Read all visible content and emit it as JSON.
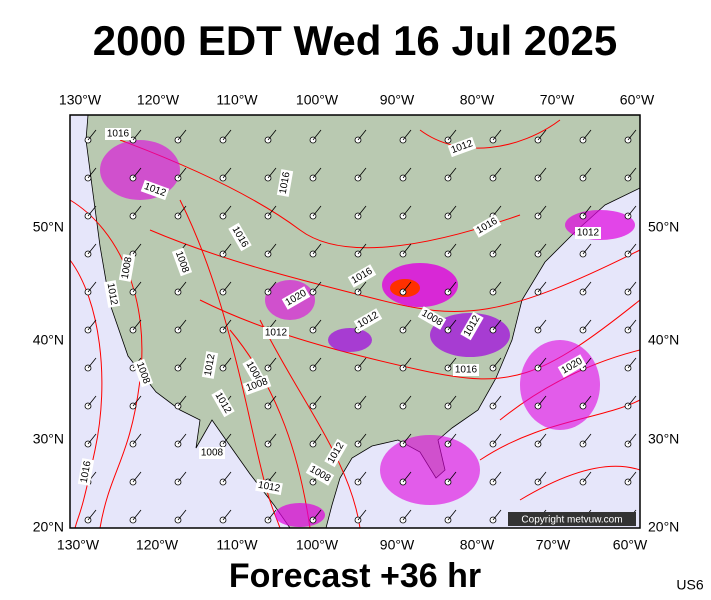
{
  "header": {
    "title": "2000 EDT Wed 16 Jul 2025"
  },
  "map": {
    "lon_labels_top": [
      "130°W",
      "120°W",
      "110°W",
      "100°W",
      "90°W",
      "80°W",
      "70°W",
      "60°W"
    ],
    "lon_labels_bottom": [
      "130°W",
      "120°W",
      "110°W",
      "100°W",
      "90°W",
      "80°W",
      "70°W",
      "60°W"
    ],
    "lat_labels_left": [
      "50°N",
      "40°N",
      "30°N",
      "20°N"
    ],
    "lat_labels_right": [
      "50°N",
      "40°N",
      "30°N",
      "20°N"
    ],
    "isobar_labels": [
      "1016",
      "1012",
      "1016",
      "1008",
      "1008",
      "1012",
      "1016",
      "1016",
      "1012",
      "1012",
      "1016",
      "1020",
      "1012",
      "1012",
      "1008",
      "1012",
      "1016",
      "1020",
      "1008",
      "1012",
      "1008",
      "1008",
      "1012",
      "1008",
      "1012",
      "1016",
      "1012",
      "1008"
    ],
    "copyright": "Copyright metvuw.com"
  },
  "footer": {
    "forecast": "Forecast +36 hr",
    "code": "US6"
  }
}
